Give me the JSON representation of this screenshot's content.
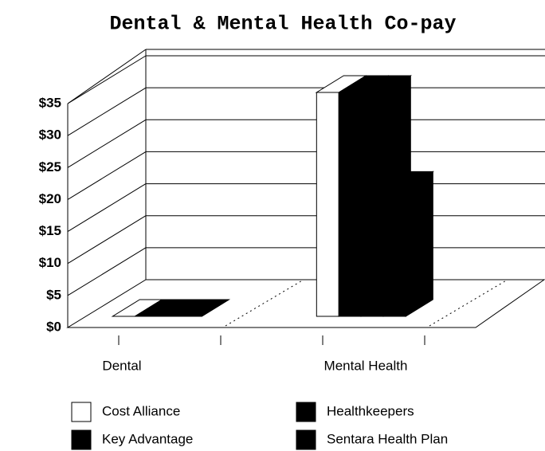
{
  "chart_data": {
    "type": "bar3d",
    "title": "Dental & Mental Health Co-pay",
    "categories": [
      "Dental",
      "Mental Health"
    ],
    "series": [
      {
        "name": "Cost Alliance",
        "color": "#ffffff",
        "values": [
          0,
          35
        ]
      },
      {
        "name": "Healthkeepers",
        "color": "#000000",
        "values": [
          0,
          35
        ]
      },
      {
        "name": "Key Advantage",
        "color": "#000000",
        "values": [
          0,
          35
        ]
      },
      {
        "name": "Sentara Health Plan",
        "color": "#000000",
        "values": [
          0,
          20
        ]
      }
    ],
    "ylim": [
      0,
      35
    ],
    "yticks": [
      {
        "value": 0,
        "label": "$0"
      },
      {
        "value": 5,
        "label": "$5"
      },
      {
        "value": 10,
        "label": "$10"
      },
      {
        "value": 15,
        "label": "$15"
      },
      {
        "value": 20,
        "label": "$20"
      },
      {
        "value": 25,
        "label": "$25"
      },
      {
        "value": 30,
        "label": "$30"
      },
      {
        "value": 35,
        "label": "$35"
      }
    ],
    "grid": true
  }
}
